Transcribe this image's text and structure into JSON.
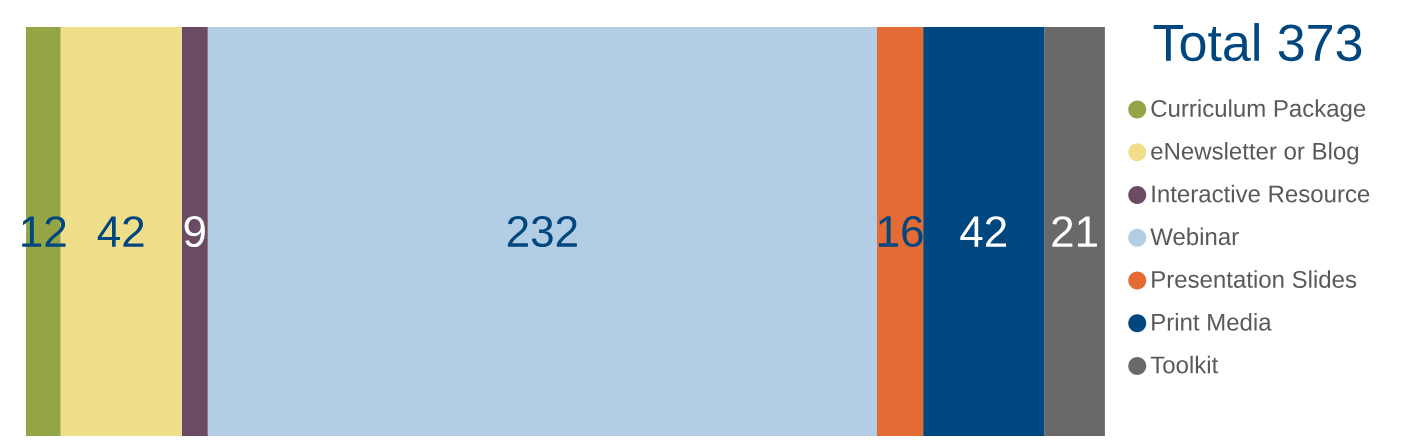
{
  "chart_data": {
    "type": "bar",
    "orientation": "horizontal",
    "stacked": true,
    "title": "Total 373",
    "categories": [
      null
    ],
    "xlim": [
      0,
      373
    ],
    "data_labels": true,
    "legend": "right",
    "series": [
      {
        "name": "Curriculum Package",
        "color": "#94a545",
        "values": [
          12
        ]
      },
      {
        "name": "eNewsletter or Blog",
        "color": "#efdf8a",
        "values": [
          42
        ]
      },
      {
        "name": "Interactive Resource",
        "color": "#6b4a63",
        "values": [
          9
        ]
      },
      {
        "name": "Webinar",
        "color": "#b2cde4",
        "values": [
          232
        ]
      },
      {
        "name": "Presentation Slides",
        "color": "#e46c34",
        "values": [
          16
        ]
      },
      {
        "name": "Print Media",
        "color": "#00467f",
        "values": [
          42
        ]
      },
      {
        "name": "Toolkit",
        "color": "#696969",
        "values": [
          21
        ]
      }
    ]
  }
}
